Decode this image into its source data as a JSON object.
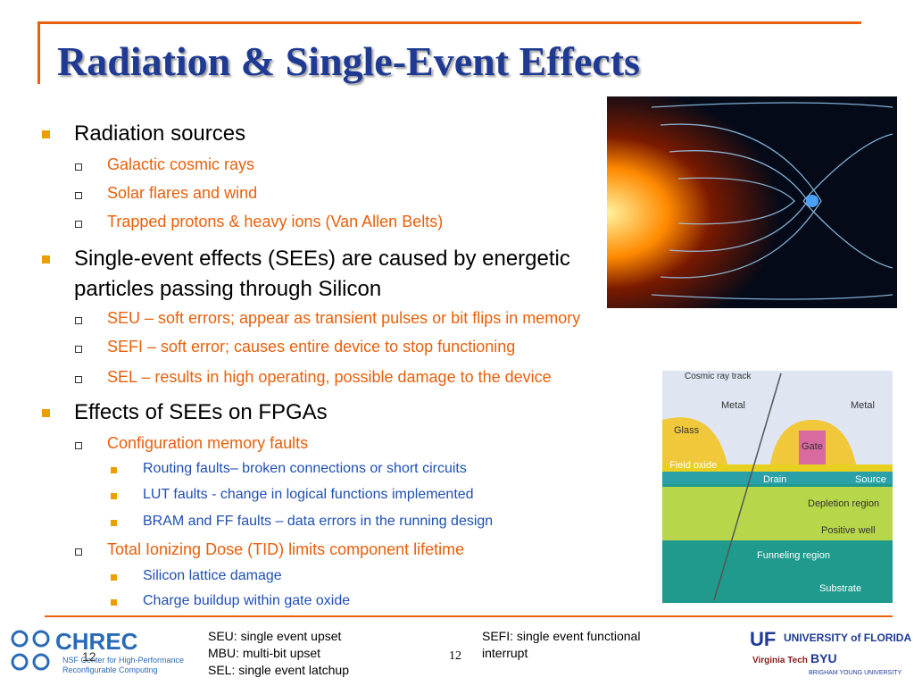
{
  "header": {
    "title": "Radiation & Single-Event Effects"
  },
  "bullets": [
    {
      "text": "Radiation sources",
      "children": [
        {
          "text": "Galactic cosmic rays",
          "children": []
        },
        {
          "text": "Solar flares and wind",
          "children": []
        },
        {
          "text": "Trapped protons & heavy ions (Van Allen Belts)",
          "children": []
        }
      ]
    },
    {
      "text": "Single-event effects (SEEs) are caused by energetic particles passing through Silicon",
      "children": [
        {
          "text": "SEU – soft errors; appear as transient pulses or bit flips in memory",
          "children": []
        },
        {
          "text": "SEFI – soft error; causes entire device to stop functioning",
          "children": []
        },
        {
          "text": "SEL – results in high operating, possible damage to the device",
          "children": []
        }
      ]
    },
    {
      "text": "Effects of SEEs on FPGAs",
      "children": [
        {
          "text": "Configuration memory faults",
          "children": [
            "Routing faults– broken connections or short circuits",
            "LUT faults -  change in logical functions implemented",
            "BRAM and FF faults – data errors in the running design"
          ]
        },
        {
          "text": "Total Ionizing Dose (TID) limits component lifetime",
          "children": [
            "Silicon lattice damage",
            "Charge buildup within gate oxide"
          ]
        }
      ]
    }
  ],
  "figure": {
    "labels": [
      "Cosmic ray track",
      "Metal",
      "Metal",
      "Glass",
      "Gate",
      "Field oxide",
      "Drain",
      "Source",
      "Depletion region",
      "Positive well",
      "Funneling region",
      "Substrate"
    ]
  },
  "footer": {
    "logo": {
      "name": "CHREC",
      "line1": "NSF Center for High-Performance",
      "line2": "Reconfigurable Computing",
      "overlay_number": "12"
    },
    "notes_left": [
      "SEU: single event upset",
      "MBU: multi-bit upset",
      "SEL: single event latchup"
    ],
    "notes_right": "SEFI: single event functional interrupt",
    "page_number": "12",
    "partners": [
      "UF",
      "UNIVERSITY of FLORIDA",
      "Virginia Tech",
      "BYU",
      "BRIGHAM YOUNG UNIVERSITY"
    ]
  }
}
